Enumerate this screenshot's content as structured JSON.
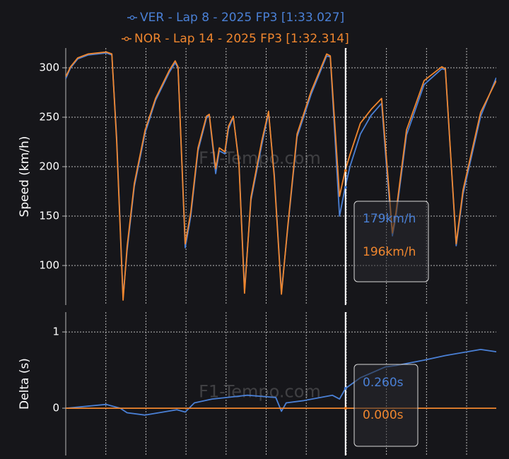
{
  "chart_data": [
    {
      "type": "line",
      "ylabel": "Speed (km/h)",
      "watermark": "F1-Tempo.com",
      "xlim": [
        0,
        10.74
      ],
      "xgrid": [
        1,
        2,
        3,
        4,
        5,
        6,
        7,
        8,
        9,
        10
      ],
      "ylim": [
        60,
        320
      ],
      "yticks": [
        100,
        150,
        200,
        250,
        300
      ],
      "grid": true,
      "x": [
        0,
        0.12,
        0.3,
        0.56,
        1.01,
        1.15,
        1.27,
        1.43,
        1.53,
        1.71,
        1.98,
        2.24,
        2.59,
        2.73,
        2.8,
        2.98,
        3.12,
        3.3,
        3.51,
        3.58,
        3.74,
        3.83,
        3.97,
        4.06,
        4.18,
        4.32,
        4.46,
        4.62,
        4.89,
        5.06,
        5.2,
        5.38,
        5.54,
        5.77,
        6.12,
        6.51,
        6.6,
        6.83,
        6.97,
        7.09,
        7.35,
        7.62,
        7.88,
        8.02,
        8.15,
        8.24,
        8.5,
        8.94,
        9.38,
        9.47,
        9.74,
        9.91,
        10.35,
        10.74
      ],
      "series": [
        {
          "name": "VER - Lap 8 - 2025 FP3 [1:33.027]",
          "color": "#4a80d6",
          "values": [
            289,
            300,
            309,
            313,
            315,
            313,
            230,
            68,
            115,
            180,
            234,
            267,
            296,
            305,
            300,
            118,
            150,
            216,
            249,
            252,
            193,
            216,
            213,
            238,
            250,
            205,
            75,
            166,
            222,
            254,
            193,
            73,
            138,
            230,
            273,
            312,
            311,
            150,
            179,
            200,
            233,
            252,
            264,
            190,
            130,
            150,
            232,
            283,
            299,
            298,
            120,
            172,
            251,
            290
          ]
        },
        {
          "name": "NOR - Lap 14 - 2025 FP3 [1:32.314]",
          "color": "#f0862e",
          "values": [
            291,
            301,
            310,
            314,
            316,
            314,
            226,
            65,
            119,
            183,
            237,
            269,
            298,
            307,
            301,
            122,
            154,
            219,
            251,
            253,
            198,
            219,
            215,
            241,
            251,
            203,
            72,
            169,
            226,
            256,
            190,
            71,
            140,
            233,
            276,
            314,
            312,
            170,
            196,
            212,
            244,
            258,
            269,
            198,
            133,
            154,
            237,
            287,
            301,
            299,
            122,
            176,
            255,
            287
          ]
        }
      ],
      "cursor": {
        "x": 6.98,
        "values": [
          {
            "value": 179,
            "label": "179km/h"
          },
          {
            "value": 196,
            "label": "196km/h"
          }
        ]
      }
    },
    {
      "type": "line",
      "ylabel": "Delta (s)",
      "watermark": "F1-Tempo.com",
      "xlim": [
        0,
        10.74
      ],
      "xgrid": [
        1,
        2,
        3,
        4,
        5,
        6,
        7,
        8,
        9,
        10
      ],
      "ylim": [
        -0.62,
        1.26
      ],
      "yticks": [
        0,
        1
      ],
      "grid": true,
      "series": [
        {
          "color": "#4a80d6",
          "x": [
            0,
            1.01,
            1.36,
            1.53,
            1.98,
            2.77,
            2.98,
            3.21,
            3.65,
            4.18,
            4.53,
            5.24,
            5.38,
            5.5,
            5.94,
            6.65,
            6.83,
            6.98,
            7.35,
            7.97,
            8.24,
            8.94,
            9.47,
            10.35,
            10.74
          ],
          "values": [
            0,
            0.05,
            0,
            -0.06,
            -0.09,
            -0.02,
            -0.05,
            0.07,
            0.12,
            0.15,
            0.17,
            0.14,
            -0.04,
            0.07,
            0.1,
            0.17,
            0.12,
            0.26,
            0.4,
            0.54,
            0.56,
            0.63,
            0.69,
            0.77,
            0.74
          ]
        },
        {
          "color": "#f0862e",
          "x": [
            0,
            10.74
          ],
          "values": [
            0,
            0
          ]
        }
      ],
      "cursor": {
        "x": 6.98,
        "values": [
          {
            "value": 0.26,
            "label": "0.260s"
          },
          {
            "value": 0,
            "label": "0.000s"
          }
        ]
      }
    }
  ]
}
